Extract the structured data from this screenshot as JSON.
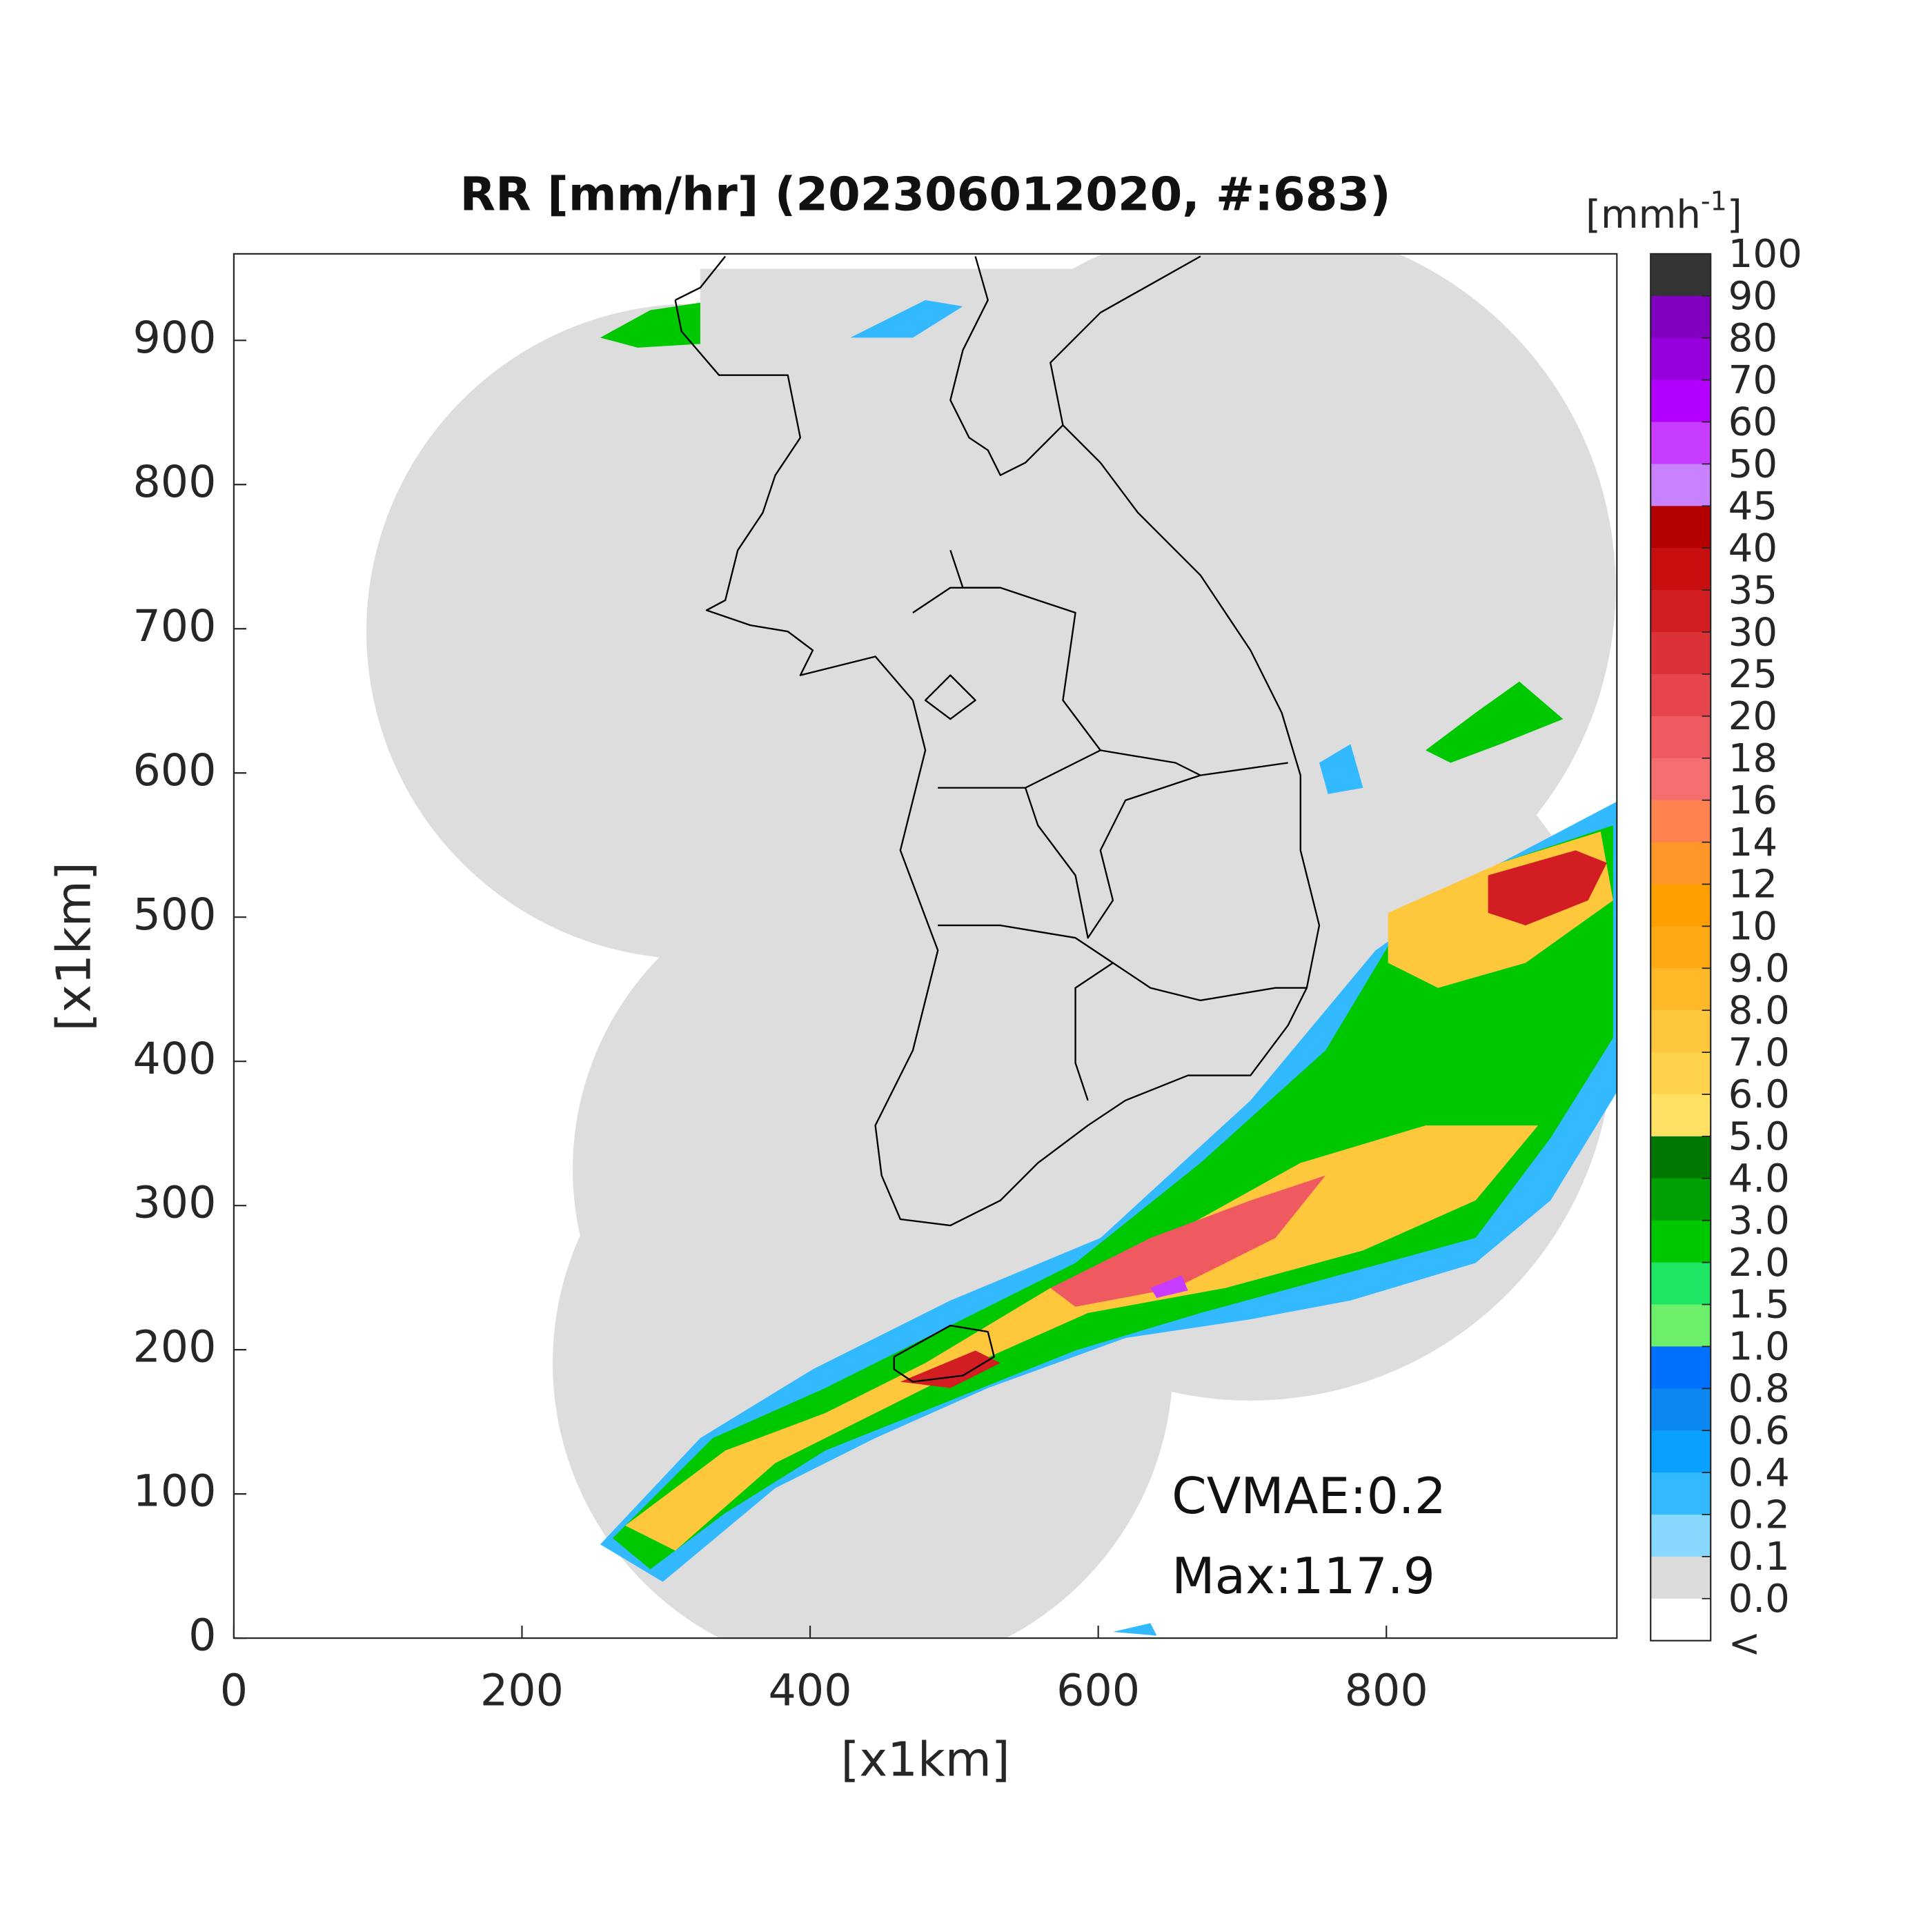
{
  "chart_data": {
    "type": "radar-map",
    "title": "RR [mm/hr] (202306012020, #:683)",
    "xlabel": "[x1km]",
    "ylabel": "[x1km]",
    "xlim": [
      0,
      960
    ],
    "ylim": [
      0,
      960
    ],
    "xticks": [
      0,
      200,
      400,
      600,
      800
    ],
    "yticks": [
      0,
      100,
      200,
      300,
      400,
      500,
      600,
      700,
      800,
      900
    ],
    "annotations": [
      "CVMAE:0.2",
      "Max:117.9"
    ],
    "colorbar": {
      "label": [
        "[mmh",
        "-1",
        "]"
      ],
      "ticks": [
        100,
        90,
        80,
        70,
        60,
        50,
        45,
        40,
        35,
        30,
        25,
        20,
        18,
        16,
        14,
        12,
        10,
        {
          "value": 9,
          "label": "9.0"
        },
        {
          "value": 8,
          "label": "8.0"
        },
        {
          "value": 7,
          "label": "7.0"
        },
        {
          "value": 6,
          "label": "6.0"
        },
        {
          "value": 5,
          "label": "5.0"
        },
        {
          "value": 4,
          "label": "4.0"
        },
        {
          "value": 3,
          "label": "3.0"
        },
        {
          "value": 2,
          "label": "2.0"
        },
        1.5,
        {
          "value": 1,
          "label": "1.0"
        },
        0.8,
        0.6,
        0.4,
        0.2,
        0.1,
        {
          "value": 0,
          "label": "0.0"
        }
      ],
      "below_label": "<",
      "colors": [
        "#333333",
        "#8000c0",
        "#9600dc",
        "#b400ff",
        "#c83cff",
        "#c882ff",
        "#b40000",
        "#c80f0f",
        "#d21e23",
        "#dc3237",
        "#e6464b",
        "#ee5a5f",
        "#f56e6e",
        "#ff8250",
        "#ff9628",
        "#ffa000",
        "#ffaa14",
        "#ffb928",
        "#ffc83c",
        "#ffd24b",
        "#ffe164",
        "#007800",
        "#00a000",
        "#00c800",
        "#1ee664",
        "#6cf06c",
        "#0070ff",
        "#0a87f0",
        "#0aa0ff",
        "#32b9ff",
        "#87d7ff",
        "#dcdcdc",
        "#ffffff"
      ]
    }
  }
}
